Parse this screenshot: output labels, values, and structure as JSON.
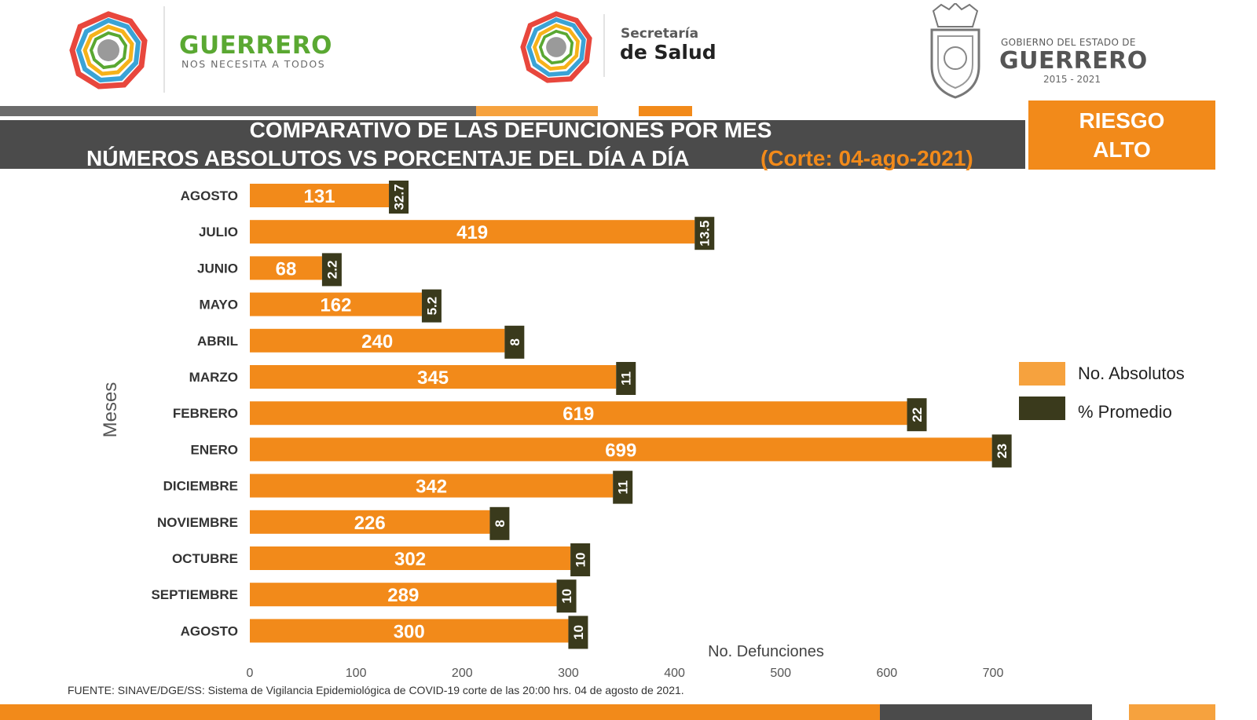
{
  "header": {
    "brand_title": "GUERRERO",
    "brand_tagline": "NOS NECESITA A TODOS",
    "secretaria_line1": "Secretaría",
    "secretaria_line2": "de Salud",
    "gobierno_line1": "GOBIERNO DEL ESTADO DE",
    "gobierno_line2": "GUERRERO",
    "gobierno_years": "2015 - 2021"
  },
  "title": {
    "line1": "COMPARATIVO DE LAS DEFUNCIONES POR MES",
    "line2": "NÚMEROS ABSOLUTOS VS PORCENTAJE DEL DÍA A DÍA",
    "corte": "(Corte: 04-ago-2021)"
  },
  "risk_badge": {
    "line1": "RIESGO",
    "line2": "ALTO"
  },
  "legend": {
    "absolutos": "No. Absolutos",
    "promedio": "% Promedio"
  },
  "footer": {
    "source": "FUENTE:  SINAVE/DGE/SS:  Sistema de Vigilancia Epidemiológica de COVID-19 corte de las 20:00 hrs. 04 de agosto de 2021."
  },
  "colors": {
    "absolutos": "#f28a1a",
    "promedio": "#3a3a1c",
    "title_band": "#4b4b4b",
    "brand_green": "#5aa832"
  },
  "chart_data": {
    "type": "bar",
    "orientation": "horizontal",
    "categories": [
      "AGOSTO",
      "JULIO",
      "JUNIO",
      "MAYO",
      "ABRIL",
      "MARZO",
      "FEBRERO",
      "ENERO",
      "DICIEMBRE",
      "NOVIEMBRE",
      "OCTUBRE",
      "SEPTIEMBRE",
      "AGOSTO"
    ],
    "series": [
      {
        "name": "No. Absolutos",
        "values": [
          131,
          419,
          68,
          162,
          240,
          345,
          619,
          699,
          342,
          226,
          302,
          289,
          300
        ]
      },
      {
        "name": "% Promedio",
        "labels": [
          "32.7",
          "13.5",
          "2.2",
          "5.2",
          "8",
          "11",
          "22",
          "23",
          "11",
          "8",
          "10",
          "10",
          "10"
        ]
      }
    ],
    "xlabel": "No. Defunciones",
    "ylabel": "Meses",
    "xlim": [
      0,
      700
    ],
    "xticks": [
      0,
      100,
      200,
      300,
      400,
      500,
      600,
      700
    ],
    "grid": false,
    "legend_position": "right"
  }
}
